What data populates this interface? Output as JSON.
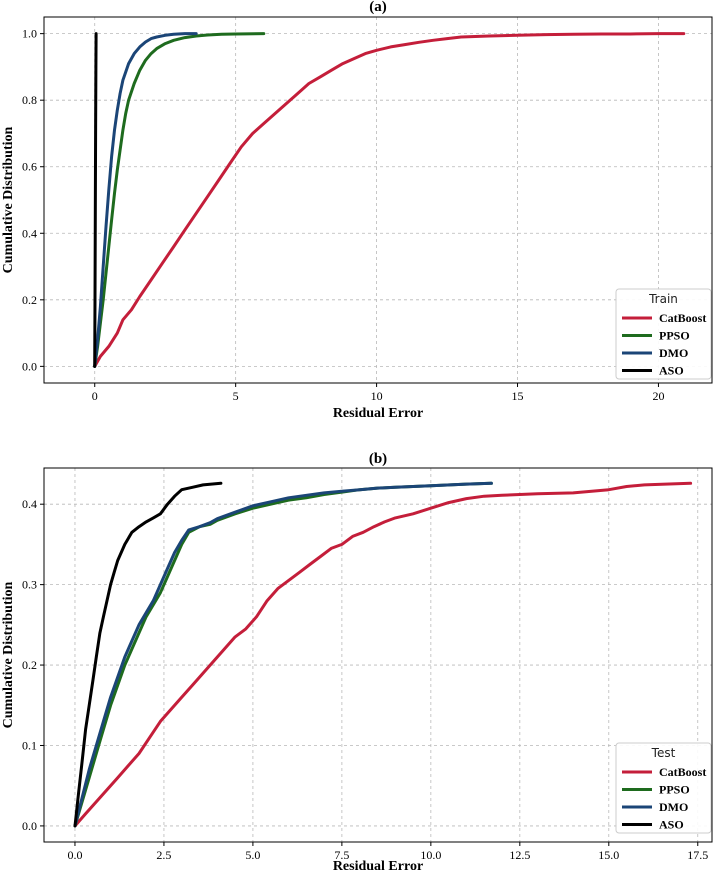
{
  "chart_data": [
    {
      "type": "line",
      "title": "(a)",
      "xlabel": "Residual Error",
      "ylabel": "Cumulative Distribution",
      "xlim": [
        -1.8,
        21.9
      ],
      "ylim": [
        -0.05,
        1.05
      ],
      "xticks": [
        0,
        5,
        10,
        15,
        20
      ],
      "xtick_labels": [
        "0",
        "5",
        "10",
        "15",
        "20"
      ],
      "yticks": [
        0.0,
        0.2,
        0.4,
        0.6,
        0.8,
        1.0
      ],
      "ytick_labels": [
        "0.0",
        "0.2",
        "0.4",
        "0.6",
        "0.8",
        "1.0"
      ],
      "grid": true,
      "legend": {
        "title": "Train",
        "position": "lower-right"
      },
      "series": [
        {
          "name": "CatBoost",
          "color": "#c41e3a",
          "x": [
            0,
            0.2,
            0.5,
            0.8,
            1.0,
            1.3,
            1.6,
            2.0,
            2.4,
            2.8,
            3.2,
            3.6,
            4.0,
            4.4,
            4.8,
            5.2,
            5.6,
            6.0,
            6.4,
            6.8,
            7.2,
            7.6,
            8.0,
            8.4,
            8.8,
            9.2,
            9.6,
            10.0,
            10.5,
            11.0,
            11.5,
            12.0,
            12.5,
            13.0,
            14.0,
            15.0,
            16.0,
            17.0,
            18.0,
            19.0,
            20.0,
            20.9
          ],
          "y": [
            0,
            0.03,
            0.06,
            0.1,
            0.14,
            0.17,
            0.21,
            0.26,
            0.31,
            0.36,
            0.41,
            0.46,
            0.51,
            0.56,
            0.61,
            0.66,
            0.7,
            0.73,
            0.76,
            0.79,
            0.82,
            0.85,
            0.87,
            0.89,
            0.91,
            0.925,
            0.94,
            0.95,
            0.96,
            0.967,
            0.974,
            0.98,
            0.985,
            0.99,
            0.993,
            0.995,
            0.997,
            0.998,
            0.999,
            0.999,
            1.0,
            1.0
          ]
        },
        {
          "name": "PPSO",
          "color": "#1e6b1e",
          "x": [
            0,
            0.1,
            0.2,
            0.3,
            0.4,
            0.5,
            0.6,
            0.7,
            0.8,
            0.9,
            1.0,
            1.1,
            1.2,
            1.4,
            1.6,
            1.8,
            2.0,
            2.2,
            2.5,
            2.8,
            3.2,
            3.6,
            4.0,
            4.5,
            5.0,
            6.0
          ],
          "y": [
            0,
            0.06,
            0.13,
            0.2,
            0.28,
            0.36,
            0.44,
            0.52,
            0.59,
            0.65,
            0.71,
            0.76,
            0.8,
            0.85,
            0.89,
            0.92,
            0.94,
            0.955,
            0.97,
            0.98,
            0.988,
            0.993,
            0.996,
            0.998,
            0.999,
            1.0
          ]
        },
        {
          "name": "DMO",
          "color": "#1b4577",
          "x": [
            0,
            0.1,
            0.2,
            0.3,
            0.4,
            0.5,
            0.6,
            0.7,
            0.8,
            0.9,
            1.0,
            1.2,
            1.4,
            1.6,
            1.8,
            2.0,
            2.2,
            2.5,
            2.8,
            3.2,
            3.6
          ],
          "y": [
            0,
            0.08,
            0.18,
            0.3,
            0.42,
            0.53,
            0.63,
            0.71,
            0.77,
            0.82,
            0.86,
            0.91,
            0.94,
            0.96,
            0.975,
            0.985,
            0.99,
            0.995,
            0.998,
            1.0,
            1.0
          ]
        },
        {
          "name": "ASO",
          "color": "#000000",
          "x": [
            0,
            0.01,
            0.02,
            0.03,
            0.04,
            0.05
          ],
          "y": [
            0,
            0.2,
            0.45,
            0.7,
            0.9,
            1.0
          ]
        }
      ]
    },
    {
      "type": "line",
      "title": "(b)",
      "xlabel": "Residual Error",
      "ylabel": "Cumulative Distribution",
      "xlim": [
        -0.87,
        17.9
      ],
      "ylim": [
        -0.02,
        0.445
      ],
      "xticks": [
        0,
        2.5,
        5,
        7.5,
        10,
        12.5,
        15,
        17.5
      ],
      "xtick_labels": [
        "0.0",
        "2.5",
        "5.0",
        "7.5",
        "10.0",
        "12.5",
        "15.0",
        "17.5"
      ],
      "yticks": [
        0.0,
        0.1,
        0.2,
        0.3,
        0.4
      ],
      "ytick_labels": [
        "0.0",
        "0.1",
        "0.2",
        "0.3",
        "0.4"
      ],
      "grid": true,
      "legend": {
        "title": "Test",
        "position": "lower-right"
      },
      "series": [
        {
          "name": "CatBoost",
          "color": "#c41e3a",
          "x": [
            0,
            0.3,
            0.6,
            0.9,
            1.2,
            1.5,
            1.8,
            2.1,
            2.4,
            2.7,
            3.0,
            3.3,
            3.6,
            3.9,
            4.2,
            4.5,
            4.8,
            5.1,
            5.4,
            5.7,
            6.0,
            6.3,
            6.6,
            6.9,
            7.2,
            7.5,
            7.8,
            8.1,
            8.4,
            8.7,
            9.0,
            9.5,
            10.0,
            10.5,
            11.0,
            11.5,
            12.0,
            12.5,
            13.0,
            14.0,
            15.0,
            15.5,
            16.0,
            17.3
          ],
          "y": [
            0,
            0.015,
            0.03,
            0.045,
            0.06,
            0.075,
            0.09,
            0.11,
            0.13,
            0.145,
            0.16,
            0.175,
            0.19,
            0.205,
            0.22,
            0.235,
            0.245,
            0.26,
            0.28,
            0.295,
            0.305,
            0.315,
            0.325,
            0.335,
            0.345,
            0.35,
            0.36,
            0.365,
            0.372,
            0.378,
            0.383,
            0.388,
            0.395,
            0.402,
            0.407,
            0.41,
            0.411,
            0.412,
            0.413,
            0.414,
            0.418,
            0.422,
            0.424,
            0.426
          ]
        },
        {
          "name": "PPSO",
          "color": "#1e6b1e",
          "x": [
            0,
            0.2,
            0.4,
            0.6,
            0.8,
            1.0,
            1.2,
            1.4,
            1.6,
            1.8,
            2.0,
            2.2,
            2.4,
            2.6,
            2.8,
            3.0,
            3.2,
            3.5,
            3.8,
            4.0,
            4.5,
            5.0,
            5.5,
            6.0,
            6.5,
            7.0,
            7.5,
            8.0,
            8.5,
            9.0,
            10.0,
            11.0,
            11.7
          ],
          "y": [
            0,
            0.03,
            0.06,
            0.09,
            0.12,
            0.15,
            0.175,
            0.2,
            0.22,
            0.24,
            0.26,
            0.275,
            0.29,
            0.31,
            0.33,
            0.35,
            0.365,
            0.372,
            0.375,
            0.38,
            0.388,
            0.395,
            0.4,
            0.405,
            0.408,
            0.412,
            0.415,
            0.418,
            0.42,
            0.421,
            0.423,
            0.425,
            0.426
          ]
        },
        {
          "name": "DMO",
          "color": "#1b4577",
          "x": [
            0,
            0.2,
            0.4,
            0.6,
            0.8,
            1.0,
            1.2,
            1.4,
            1.6,
            1.8,
            2.0,
            2.2,
            2.4,
            2.6,
            2.8,
            3.0,
            3.2,
            3.5,
            3.8,
            4.0,
            4.5,
            5.0,
            5.5,
            6.0,
            6.5,
            7.0,
            7.5,
            8.0,
            8.5,
            9.0,
            10.0,
            11.0,
            11.7
          ],
          "y": [
            0,
            0.035,
            0.07,
            0.1,
            0.13,
            0.16,
            0.185,
            0.21,
            0.23,
            0.25,
            0.265,
            0.28,
            0.3,
            0.32,
            0.34,
            0.355,
            0.368,
            0.372,
            0.377,
            0.382,
            0.39,
            0.398,
            0.403,
            0.408,
            0.411,
            0.414,
            0.416,
            0.418,
            0.42,
            0.421,
            0.423,
            0.425,
            0.426
          ]
        },
        {
          "name": "ASO",
          "color": "#000000",
          "x": [
            0,
            0.1,
            0.2,
            0.3,
            0.4,
            0.5,
            0.6,
            0.7,
            0.8,
            0.9,
            1.0,
            1.1,
            1.2,
            1.4,
            1.6,
            1.8,
            2.0,
            2.2,
            2.4,
            2.6,
            2.8,
            3.0,
            3.3,
            3.6,
            4.1
          ],
          "y": [
            0,
            0.04,
            0.08,
            0.12,
            0.15,
            0.18,
            0.21,
            0.24,
            0.26,
            0.28,
            0.3,
            0.315,
            0.33,
            0.35,
            0.365,
            0.372,
            0.378,
            0.383,
            0.388,
            0.4,
            0.41,
            0.418,
            0.421,
            0.424,
            0.426
          ]
        }
      ]
    }
  ]
}
